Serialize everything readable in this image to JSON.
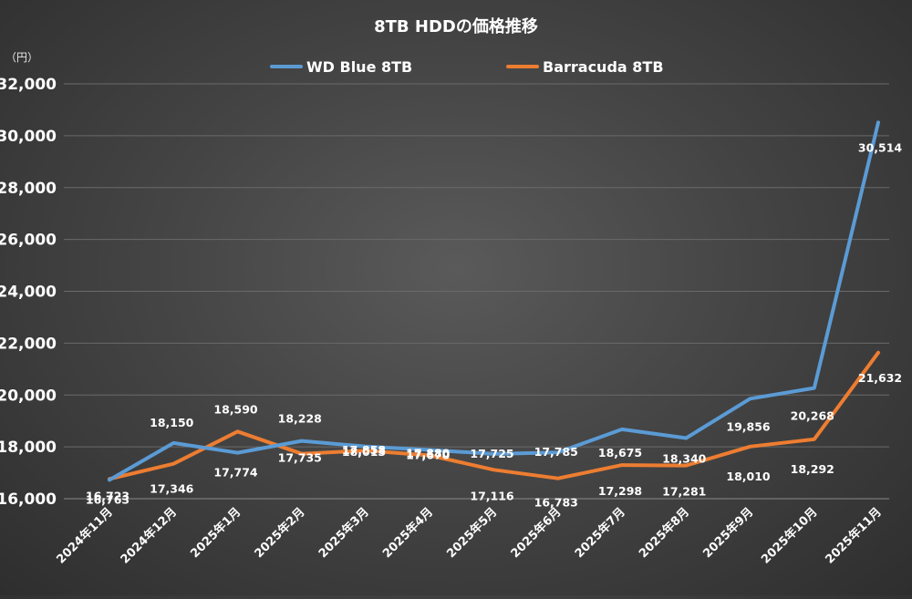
{
  "chart_data": {
    "type": "line",
    "title": "8TB HDDの価格推移",
    "unit_label": "（円）",
    "xlabel": "",
    "ylabel": "",
    "ylim": [
      16000,
      32000
    ],
    "yticks": [
      16000,
      18000,
      20000,
      22000,
      24000,
      26000,
      28000,
      30000,
      32000
    ],
    "ytick_labels": [
      "16,000",
      "18,000",
      "20,000",
      "22,000",
      "24,000",
      "26,000",
      "28,000",
      "30,000",
      "32,000"
    ],
    "grid": true,
    "legend_position": "top-center",
    "categories": [
      "2024年11月",
      "2024年12月",
      "2025年1月",
      "2025年2月",
      "2025年3月",
      "2025年4月",
      "2025年5月",
      "2025年6月",
      "2025年7月",
      "2025年8月",
      "2025年9月",
      "2025年10月",
      "2025年11月"
    ],
    "series": [
      {
        "name": "WD Blue 8TB",
        "color": "#5b9bd5",
        "values": [
          16723,
          18150,
          17774,
          18228,
          18013,
          17880,
          17725,
          17785,
          18675,
          18340,
          19856,
          20268,
          30514
        ],
        "labels": [
          "16,723",
          "18,150",
          "17,774",
          "18,228",
          "18,013",
          "17,880",
          "17,725",
          "17,785",
          "18,675",
          "18,340",
          "19,856",
          "20,268",
          "30,514"
        ]
      },
      {
        "name": "Barracuda 8TB",
        "color": "#ed7d31",
        "values": [
          16763,
          17346,
          18590,
          17735,
          17858,
          17670,
          17116,
          16783,
          17298,
          17281,
          18010,
          18292,
          21632
        ],
        "labels": [
          "16,763",
          "17,346",
          "18,590",
          "17,735",
          "17,858",
          "17,670",
          "17,116",
          "16,783",
          "17,298",
          "17,281",
          "18,010",
          "18,292",
          "21,632"
        ]
      }
    ]
  }
}
